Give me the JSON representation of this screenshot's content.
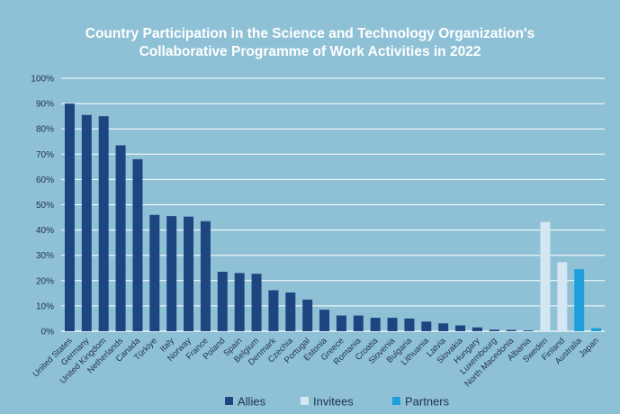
{
  "chart_data": {
    "type": "bar",
    "title_lines": [
      "Country Participation in the Science and Technology Organization's",
      "Collaborative Programme of Work Activities in 2022"
    ],
    "ylim": [
      0,
      100
    ],
    "y_unit": "%",
    "y_ticks": [
      "0%",
      "10%",
      "20%",
      "30%",
      "40%",
      "50%",
      "60%",
      "70%",
      "80%",
      "90%",
      "100%"
    ],
    "grid": true,
    "legend_position": "bottom",
    "categories": [
      "United States",
      "Germany",
      "United Kingdom",
      "Netherlands",
      "Canada",
      "Türkiye",
      "Italy",
      "Norway",
      "France",
      "Poland",
      "Spain",
      "Belgium",
      "Denmark",
      "Czechia",
      "Portugal",
      "Estonia",
      "Greece",
      "Romania",
      "Croatia",
      "Slovenia",
      "Bulgaria",
      "Lithuania",
      "Latvia",
      "Slovakia",
      "Hungary",
      "Luxembourg",
      "North Macedonia",
      "Albania",
      "Sweden",
      "Finland",
      "Australia",
      "Japan"
    ],
    "values": [
      90,
      85.5,
      85,
      73.5,
      68,
      46,
      45.5,
      45.3,
      43.5,
      23.5,
      23,
      22.7,
      16.2,
      15.3,
      12.5,
      8.5,
      6.2,
      6.2,
      5.3,
      5.3,
      5,
      3.8,
      3.1,
      2.3,
      1.5,
      0.6,
      0.5,
      0.3,
      43.2,
      27.3,
      24.5,
      1.2
    ],
    "groups": [
      "Allies",
      "Allies",
      "Allies",
      "Allies",
      "Allies",
      "Allies",
      "Allies",
      "Allies",
      "Allies",
      "Allies",
      "Allies",
      "Allies",
      "Allies",
      "Allies",
      "Allies",
      "Allies",
      "Allies",
      "Allies",
      "Allies",
      "Allies",
      "Allies",
      "Allies",
      "Allies",
      "Allies",
      "Allies",
      "Allies",
      "Allies",
      "Allies",
      "Invitees",
      "Invitees",
      "Partners",
      "Partners"
    ],
    "legend": [
      {
        "name": "Allies",
        "color": "#1d4580"
      },
      {
        "name": "Invitees",
        "color": "#d3e6f1"
      },
      {
        "name": "Partners",
        "color": "#1fa0dc"
      }
    ]
  },
  "colors": {
    "background": "#8fc1d6",
    "gridline": "#ffffff",
    "text": "#1f3050",
    "title": "#ffffff"
  }
}
